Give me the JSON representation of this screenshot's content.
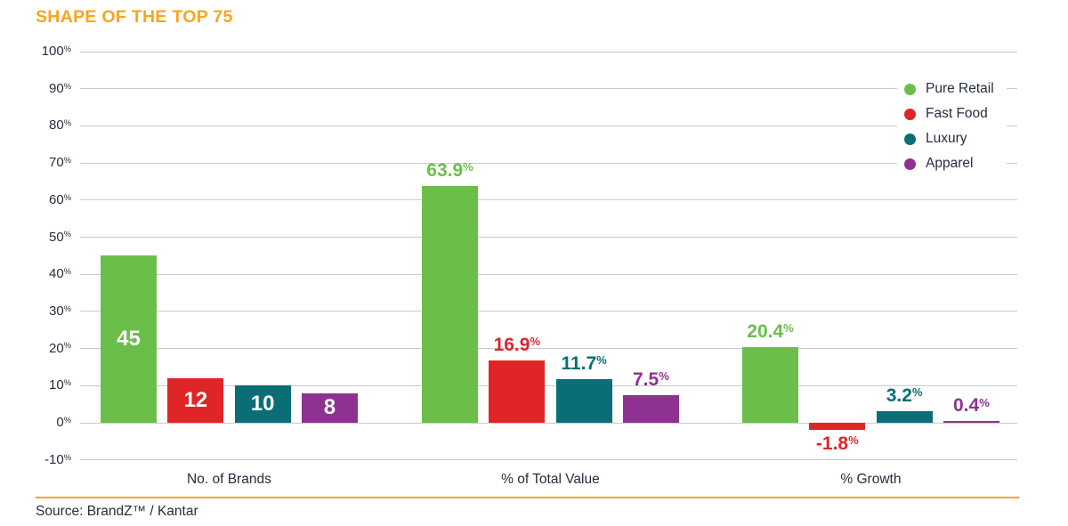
{
  "title": "SHAPE OF THE TOP 75",
  "source": "Source: BrandZ™ / Kantar",
  "colors": {
    "accent_orange": "#F9A51E",
    "text_navy": "#272D3F",
    "gridline": "#C9CACB",
    "pure_retail_green": "#6CBE4B",
    "fast_food_red": "#E02529",
    "luxury_teal": "#0A6E76",
    "apparel_purple": "#8E3191",
    "inside_bar_label": "#FFFFFF"
  },
  "legend": {
    "position": "top-right",
    "items": [
      {
        "label": "Pure Retail",
        "color": "#6CBE4B"
      },
      {
        "label": "Fast Food",
        "color": "#E02529"
      },
      {
        "label": "Luxury",
        "color": "#0A6E76"
      },
      {
        "label": "Apparel",
        "color": "#8E3191"
      }
    ]
  },
  "chart_data": {
    "type": "bar",
    "title": "SHAPE OF THE TOP 75",
    "categories": [
      "No. of Brands",
      "% of Total Value",
      "% Growth"
    ],
    "series": [
      {
        "name": "Pure Retail",
        "color": "#6CBE4B",
        "values": [
          45,
          63.9,
          20.4
        ]
      },
      {
        "name": "Fast Food",
        "color": "#E02529",
        "values": [
          12,
          16.9,
          -1.8
        ]
      },
      {
        "name": "Luxury",
        "color": "#0A6E76",
        "values": [
          10,
          11.7,
          3.2
        ]
      },
      {
        "name": "Apparel",
        "color": "#8E3191",
        "values": [
          8,
          7.5,
          0.4
        ]
      }
    ],
    "value_labels": [
      [
        "45",
        "12",
        "10",
        "8"
      ],
      [
        "63.9%",
        "16.9%",
        "11.7%",
        "7.5%"
      ],
      [
        "20.4%",
        "-1.8%",
        "3.2%",
        "0.4%"
      ]
    ],
    "label_placement_per_category": [
      "inside",
      "outside",
      "outside"
    ],
    "yticks": [
      100,
      90,
      80,
      70,
      60,
      50,
      40,
      30,
      20,
      10,
      0,
      -10
    ],
    "ytick_suffix": "%",
    "ylim": [
      -10,
      100
    ],
    "grid": true,
    "legend_position": "top-right"
  }
}
